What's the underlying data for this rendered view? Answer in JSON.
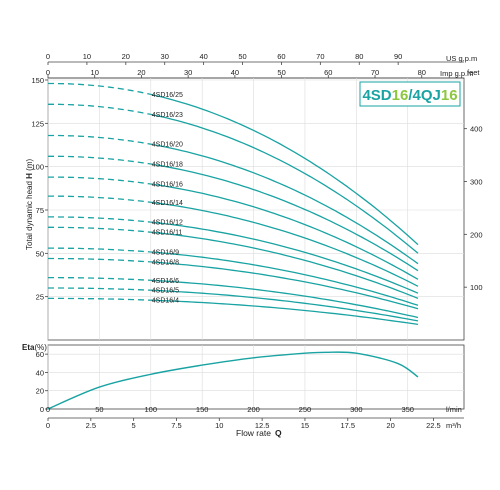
{
  "colors": {
    "curve": "#1aa3a3",
    "title_teal": "#1aa3a3",
    "title_green": "#8dc63f",
    "title_box": "#1aa3a3"
  },
  "chart_data": [
    {
      "type": "line",
      "title_parts": [
        {
          "text": "4SD",
          "color": "#1aa3a3"
        },
        {
          "text": "16",
          "color": "#8dc63f"
        },
        {
          "text": "/4QJ",
          "color": "#1aa3a3"
        },
        {
          "text": "16",
          "color": "#8dc63f"
        }
      ],
      "ylabel": "Total dynamic head H (m)",
      "ylabel_right": "feet",
      "ylim": [
        0,
        150
      ],
      "yticks": [
        "25",
        "50",
        "75",
        "100",
        "125",
        "150"
      ],
      "ylim_right": [
        0,
        492
      ],
      "yticks_right": [
        "100",
        "200",
        "300",
        "400"
      ],
      "xlim": [
        0,
        360
      ],
      "top_axis_usgpm": {
        "label": "US g.p.m",
        "ticks": [
          "0",
          "10",
          "20",
          "30",
          "40",
          "50",
          "60",
          "70",
          "80",
          "90"
        ]
      },
      "top_axis_impgpm": {
        "label": "Imp g.p.m",
        "ticks": [
          "0",
          "10",
          "20",
          "30",
          "40",
          "50",
          "60",
          "70",
          "80"
        ]
      },
      "grid": true,
      "series": [
        {
          "name": "4SD16/25",
          "shutoff": 148,
          "dashed_to": 100,
          "end_flow": 360,
          "end_head": 55
        },
        {
          "name": "4SD16/23",
          "shutoff": 136,
          "dashed_to": 100,
          "end_flow": 360,
          "end_head": 50
        },
        {
          "name": "4SD16/20",
          "shutoff": 118,
          "dashed_to": 100,
          "end_flow": 360,
          "end_head": 44
        },
        {
          "name": "4SD16/18",
          "shutoff": 106,
          "dashed_to": 100,
          "end_flow": 360,
          "end_head": 40
        },
        {
          "name": "4SD16/16",
          "shutoff": 94,
          "dashed_to": 100,
          "end_flow": 360,
          "end_head": 35
        },
        {
          "name": "4SD16/14",
          "shutoff": 83,
          "dashed_to": 100,
          "end_flow": 360,
          "end_head": 31
        },
        {
          "name": "4SD16/12",
          "shutoff": 71,
          "dashed_to": 100,
          "end_flow": 360,
          "end_head": 27
        },
        {
          "name": "4SD16/11",
          "shutoff": 65,
          "dashed_to": 100,
          "end_flow": 360,
          "end_head": 24
        },
        {
          "name": "4SD16/9",
          "shutoff": 53,
          "dashed_to": 100,
          "end_flow": 360,
          "end_head": 20
        },
        {
          "name": "4SD16/8",
          "shutoff": 47,
          "dashed_to": 100,
          "end_flow": 360,
          "end_head": 18
        },
        {
          "name": "4SD16/6",
          "shutoff": 36,
          "dashed_to": 100,
          "end_flow": 360,
          "end_head": 13
        },
        {
          "name": "4SD16/5",
          "shutoff": 30,
          "dashed_to": 100,
          "end_flow": 360,
          "end_head": 11
        },
        {
          "name": "4SD16/4",
          "shutoff": 24,
          "dashed_to": 100,
          "end_flow": 360,
          "end_head": 9
        }
      ]
    },
    {
      "type": "line",
      "ylabel": "Eta",
      "ylabel_unit": "(%)",
      "ylim": [
        0,
        70
      ],
      "yticks": [
        "0",
        "20",
        "40",
        "60"
      ],
      "xlim": [
        0,
        360
      ],
      "grid": true,
      "series": [
        {
          "x": [
            0,
            50,
            100,
            150,
            200,
            250,
            270,
            300,
            340,
            360
          ],
          "y": [
            0,
            24,
            38,
            48,
            56,
            61,
            62,
            61,
            50,
            35
          ]
        }
      ]
    }
  ],
  "bottom_axis_lmin": {
    "unit": "l/min",
    "ticks": [
      "0",
      "50",
      "100",
      "150",
      "200",
      "250",
      "300",
      "350"
    ]
  },
  "bottom_axis_m3h": {
    "unit": "m³/h",
    "ticks": [
      "0",
      "2.5",
      "5",
      "7.5",
      "10",
      "12.5",
      "15",
      "17.5",
      "20",
      "22.5"
    ]
  },
  "xlabel": {
    "text": "Flow  rate",
    "symbol": "Q"
  }
}
